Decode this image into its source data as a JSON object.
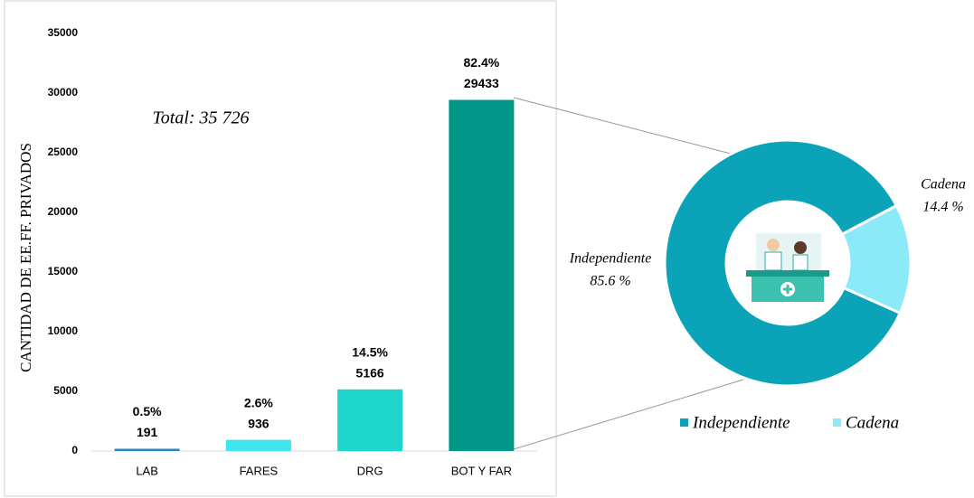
{
  "chart_data": [
    {
      "type": "bar",
      "y_label": "CANTIDAD DE EE.FF. PRIVADOS",
      "annotation": "Total: 35 726",
      "categories": [
        "LAB",
        "FARES",
        "DRG",
        "BOT Y FAR"
      ],
      "values": [
        191,
        936,
        5166,
        29433
      ],
      "shares": [
        {
          "value": 0.5,
          "label": "0.5%"
        },
        {
          "value": 2.6,
          "label": "2.6%"
        },
        {
          "value": 14.5,
          "label": "14.5%"
        },
        {
          "value": 82.4,
          "label": "82.4%"
        }
      ],
      "colors": [
        "#2e86c1",
        "#40e6ee",
        "#1ed6cc",
        "#009688"
      ],
      "ylim": [
        0,
        35000
      ],
      "yticks": [
        0,
        5000,
        10000,
        15000,
        20000,
        25000,
        30000,
        35000
      ]
    },
    {
      "type": "donut",
      "categories": [
        "Independiente",
        "Cadena"
      ],
      "values": [
        85.6,
        14.4
      ],
      "value_labels": [
        "85.6 %",
        "14.4 %"
      ],
      "colors": [
        "#0aa3b8",
        "#8ce9f8"
      ],
      "legend": "bottom"
    }
  ]
}
